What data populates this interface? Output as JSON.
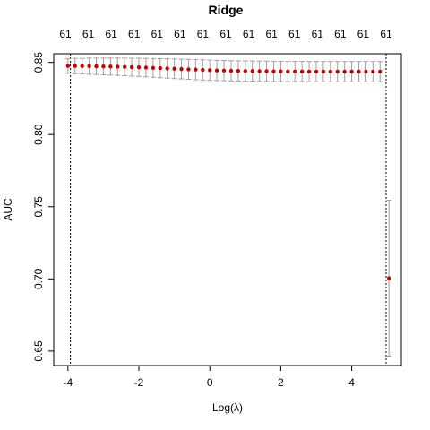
{
  "chart_data": {
    "type": "scatter",
    "title": "Ridge",
    "xlabel": "Log(λ)",
    "ylabel": "AUC",
    "xlim": [
      -4.4,
      5.4
    ],
    "ylim": [
      0.64,
      0.856
    ],
    "x_ticks": [
      -4,
      -2,
      0,
      2,
      4
    ],
    "x_tick_labels": [
      "-4",
      "-2",
      "0",
      "2",
      "4"
    ],
    "y_ticks": [
      0.65,
      0.7,
      0.75,
      0.8,
      0.85
    ],
    "y_tick_labels": [
      "0.65",
      "0.70",
      "0.75",
      "0.80",
      "0.85"
    ],
    "top_axis_labels": [
      "61",
      "61",
      "61",
      "61",
      "61",
      "61",
      "61",
      "61",
      "61",
      "61",
      "61",
      "61",
      "61",
      "61",
      "61"
    ],
    "vertical_reference_lines": [
      -3.93,
      4.97
    ],
    "grid": false,
    "series": [
      {
        "color": "#cc0000",
        "error_bar_color": "#a0a0a0",
        "points": [
          {
            "x": -4.0,
            "y": 0.8475,
            "lo": 0.8425,
            "hi": 0.8525
          },
          {
            "x": -3.8,
            "y": 0.8475,
            "lo": 0.8422,
            "hi": 0.8528
          },
          {
            "x": -3.6,
            "y": 0.8474,
            "lo": 0.842,
            "hi": 0.8528
          },
          {
            "x": -3.4,
            "y": 0.8474,
            "lo": 0.8418,
            "hi": 0.853
          },
          {
            "x": -3.2,
            "y": 0.8473,
            "lo": 0.8416,
            "hi": 0.853
          },
          {
            "x": -3.0,
            "y": 0.8472,
            "lo": 0.8414,
            "hi": 0.853
          },
          {
            "x": -2.8,
            "y": 0.8471,
            "lo": 0.8412,
            "hi": 0.853
          },
          {
            "x": -2.6,
            "y": 0.847,
            "lo": 0.841,
            "hi": 0.853
          },
          {
            "x": -2.4,
            "y": 0.8469,
            "lo": 0.8408,
            "hi": 0.853
          },
          {
            "x": -2.2,
            "y": 0.8467,
            "lo": 0.8405,
            "hi": 0.8529
          },
          {
            "x": -2.0,
            "y": 0.8466,
            "lo": 0.8403,
            "hi": 0.8529
          },
          {
            "x": -1.8,
            "y": 0.8464,
            "lo": 0.84,
            "hi": 0.8528
          },
          {
            "x": -1.6,
            "y": 0.8462,
            "lo": 0.8397,
            "hi": 0.8527
          },
          {
            "x": -1.4,
            "y": 0.846,
            "lo": 0.8394,
            "hi": 0.8526
          },
          {
            "x": -1.2,
            "y": 0.8458,
            "lo": 0.8391,
            "hi": 0.8525
          },
          {
            "x": -1.0,
            "y": 0.8456,
            "lo": 0.8388,
            "hi": 0.8524
          },
          {
            "x": -0.8,
            "y": 0.8454,
            "lo": 0.8386,
            "hi": 0.8522
          },
          {
            "x": -0.6,
            "y": 0.8452,
            "lo": 0.8383,
            "hi": 0.8521
          },
          {
            "x": -0.4,
            "y": 0.845,
            "lo": 0.838,
            "hi": 0.852
          },
          {
            "x": -0.2,
            "y": 0.8448,
            "lo": 0.8378,
            "hi": 0.8518
          },
          {
            "x": 0.0,
            "y": 0.8446,
            "lo": 0.8376,
            "hi": 0.8516
          },
          {
            "x": 0.2,
            "y": 0.8444,
            "lo": 0.8374,
            "hi": 0.8514
          },
          {
            "x": 0.4,
            "y": 0.8443,
            "lo": 0.8373,
            "hi": 0.8513
          },
          {
            "x": 0.6,
            "y": 0.8442,
            "lo": 0.8372,
            "hi": 0.8512
          },
          {
            "x": 0.8,
            "y": 0.8441,
            "lo": 0.8371,
            "hi": 0.8511
          },
          {
            "x": 1.0,
            "y": 0.844,
            "lo": 0.837,
            "hi": 0.851
          },
          {
            "x": 1.2,
            "y": 0.844,
            "lo": 0.837,
            "hi": 0.851
          },
          {
            "x": 1.4,
            "y": 0.8439,
            "lo": 0.8369,
            "hi": 0.8509
          },
          {
            "x": 1.6,
            "y": 0.8439,
            "lo": 0.8369,
            "hi": 0.8509
          },
          {
            "x": 1.8,
            "y": 0.8438,
            "lo": 0.8368,
            "hi": 0.8508
          },
          {
            "x": 2.0,
            "y": 0.8438,
            "lo": 0.8368,
            "hi": 0.8508
          },
          {
            "x": 2.2,
            "y": 0.8437,
            "lo": 0.8367,
            "hi": 0.8507
          },
          {
            "x": 2.4,
            "y": 0.8437,
            "lo": 0.8367,
            "hi": 0.8507
          },
          {
            "x": 2.6,
            "y": 0.8437,
            "lo": 0.8367,
            "hi": 0.8507
          },
          {
            "x": 2.8,
            "y": 0.8436,
            "lo": 0.8366,
            "hi": 0.8506
          },
          {
            "x": 3.0,
            "y": 0.8436,
            "lo": 0.8366,
            "hi": 0.8506
          },
          {
            "x": 3.2,
            "y": 0.8436,
            "lo": 0.8366,
            "hi": 0.8506
          },
          {
            "x": 3.4,
            "y": 0.8436,
            "lo": 0.8366,
            "hi": 0.8506
          },
          {
            "x": 3.6,
            "y": 0.8436,
            "lo": 0.8366,
            "hi": 0.8506
          },
          {
            "x": 3.8,
            "y": 0.8436,
            "lo": 0.8366,
            "hi": 0.8506
          },
          {
            "x": 4.0,
            "y": 0.8436,
            "lo": 0.8366,
            "hi": 0.8506
          },
          {
            "x": 4.2,
            "y": 0.8436,
            "lo": 0.8366,
            "hi": 0.8506
          },
          {
            "x": 4.4,
            "y": 0.8436,
            "lo": 0.8366,
            "hi": 0.8506
          },
          {
            "x": 4.6,
            "y": 0.8436,
            "lo": 0.8366,
            "hi": 0.8506
          },
          {
            "x": 4.8,
            "y": 0.8436,
            "lo": 0.8366,
            "hi": 0.8506
          },
          {
            "x": 5.05,
            "y": 0.7005,
            "lo": 0.6465,
            "hi": 0.7545
          }
        ]
      }
    ]
  }
}
